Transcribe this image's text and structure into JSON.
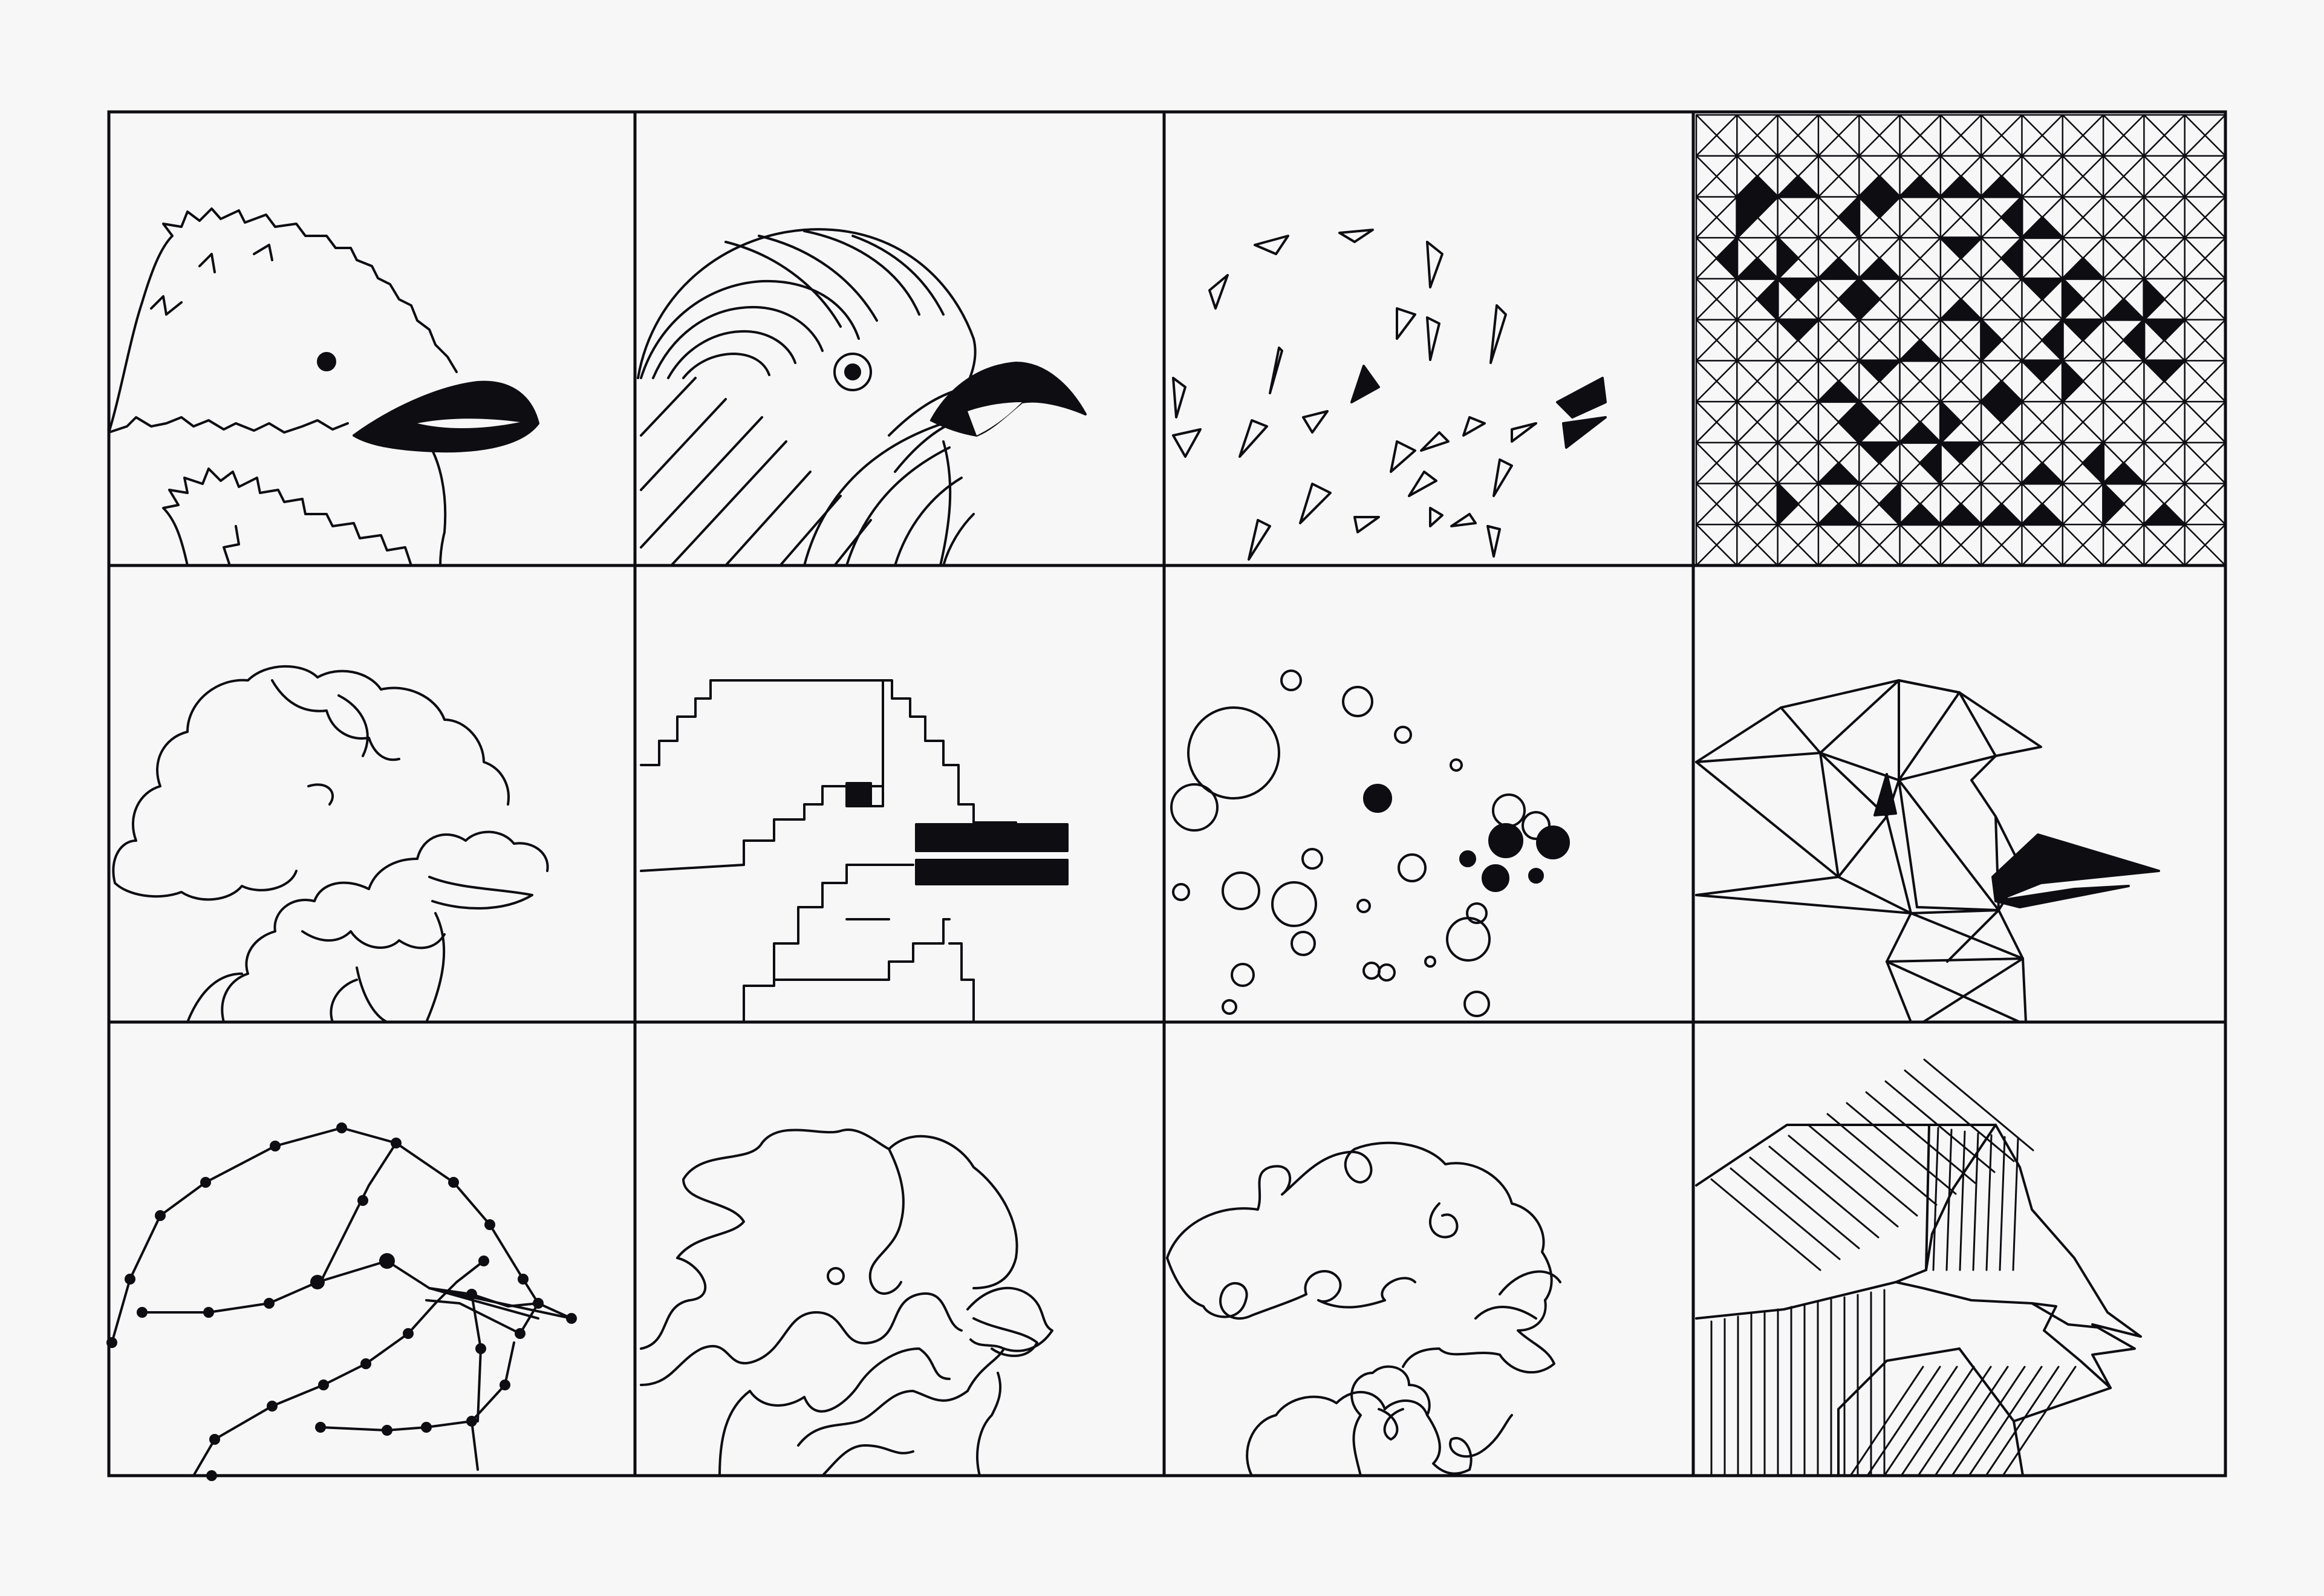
{
  "artwork": {
    "ink": "#0d0d12",
    "paper": "#f7f7f7",
    "panels": [
      {
        "name": "fluffy-bird-panel"
      },
      {
        "name": "concentric-arc-bird-panel"
      },
      {
        "name": "triangle-fragment-bird-panel"
      },
      {
        "name": "triangle-grid-bird-panel"
      },
      {
        "name": "cloud-bird-panel"
      },
      {
        "name": "stepped-bird-panel"
      },
      {
        "name": "circle-bird-panel"
      },
      {
        "name": "polygon-bird-panel"
      },
      {
        "name": "dotted-line-bird-panel"
      },
      {
        "name": "wavy-bird-panel"
      },
      {
        "name": "loop-bird-panel"
      },
      {
        "name": "hatched-bird-panel"
      }
    ]
  }
}
